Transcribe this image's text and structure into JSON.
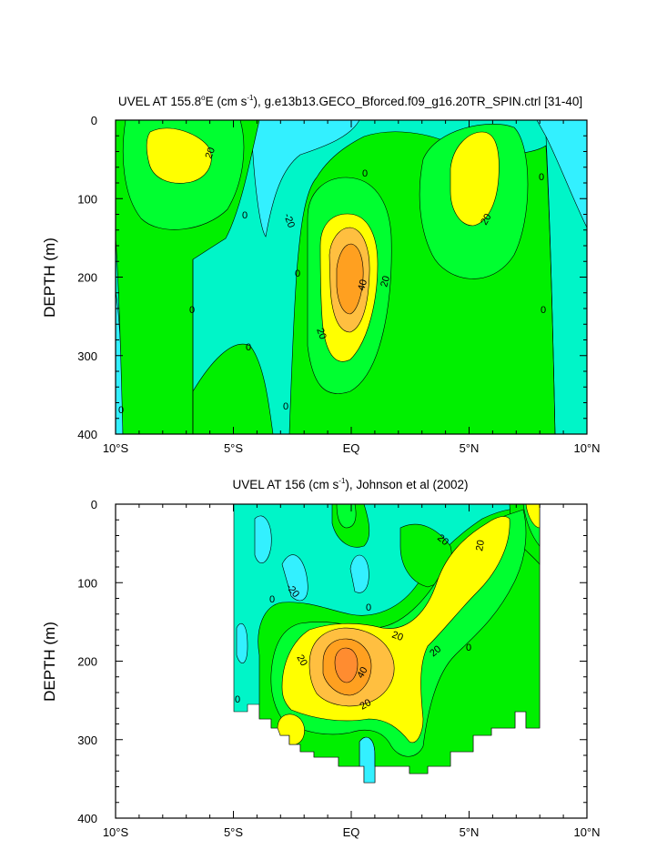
{
  "colors": {
    "neg20": "#33f0ff",
    "neg10": "#00f5c8",
    "c0": "#00f000",
    "c10": "#00ff30",
    "c20": "#ffff00",
    "c30": "#ffbf40",
    "c40": "#ffa020",
    "c50": "#ff8c30"
  },
  "panel1": {
    "title_main": "UVEL AT 155.8",
    "title_deg": "o",
    "title_unit_pre": "E (cm s",
    "title_sup": "-1",
    "title_rest": "), g.e13b13.GECO_Bforced.f09_g16.20TR_SPIN.ctrl [31-40]",
    "ylabel": "DEPTH (m)",
    "yticks": [
      "0",
      "100",
      "200",
      "300",
      "400"
    ],
    "xticks": [
      "10°S",
      "5°S",
      "EQ",
      "5°N",
      "10°N"
    ],
    "contour_labels": [
      "20",
      "-20",
      "0",
      "0",
      "0",
      "0",
      "40",
      "20",
      "20",
      "20",
      "0",
      "0",
      "0",
      "0",
      "0"
    ]
  },
  "panel2": {
    "title_main": "UVEL AT 156 (cm s",
    "title_sup": "-1",
    "title_rest": "), Johnson et al (2002)",
    "ylabel": "DEPTH (m)",
    "yticks": [
      "0",
      "100",
      "200",
      "300",
      "400"
    ],
    "xticks": [
      "10°S",
      "5°S",
      "EQ",
      "5°N",
      "10°N"
    ],
    "contour_labels": [
      "20",
      "20",
      "-20",
      "0",
      "20",
      "0",
      "20",
      "40",
      "20",
      "20",
      "0",
      "0"
    ]
  },
  "chart_data": [
    {
      "type": "heatmap",
      "title": "UVEL AT 155.8°E (cm s-1), g.e13b13.GECO_Bforced.f09_g16.20TR_SPIN.ctrl [31-40]",
      "ylabel": "DEPTH (m)",
      "x_range": [
        -10,
        10
      ],
      "y_range": [
        0,
        400
      ],
      "y_inverted": true,
      "x_tick_labels": [
        "10°S",
        "5°S",
        "EQ",
        "5°N",
        "10°N"
      ],
      "contour_levels": [
        -20,
        -10,
        0,
        10,
        20,
        30,
        40,
        50
      ],
      "features": [
        {
          "type": "eastward core (EUC)",
          "lat": 0,
          "depth": 200,
          "max_value": 45
        },
        {
          "type": "eastward core",
          "lat": -7.5,
          "depth": 50,
          "value": 25
        },
        {
          "type": "eastward core",
          "lat": 5,
          "depth": 80,
          "value": 25
        },
        {
          "type": "westward flow",
          "lat": -2,
          "depth": 50,
          "value": -20
        }
      ]
    },
    {
      "type": "heatmap",
      "title": "UVEL AT 156 (cm s-1), Johnson et al (2002)",
      "ylabel": "DEPTH (m)",
      "x_range": [
        -10,
        10
      ],
      "y_range": [
        0,
        400
      ],
      "y_inverted": true,
      "x_tick_labels": [
        "10°S",
        "5°S",
        "EQ",
        "5°N",
        "10°N"
      ],
      "data_extent_lat": [
        -5,
        8
      ],
      "contour_levels": [
        -20,
        -10,
        0,
        10,
        20,
        30,
        40,
        50
      ],
      "features": [
        {
          "type": "eastward core (EUC)",
          "lat": -0.3,
          "depth": 200,
          "max_value": 50
        },
        {
          "type": "eastward flow",
          "lat": 5,
          "depth": 60,
          "value": 25
        },
        {
          "type": "westward flow",
          "lat": 0.5,
          "depth": 90,
          "value": -20
        }
      ]
    }
  ]
}
